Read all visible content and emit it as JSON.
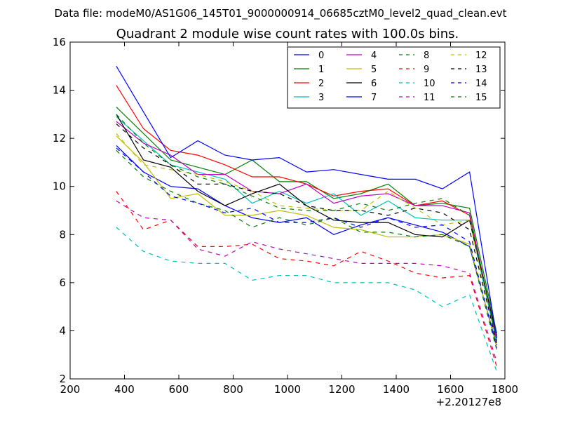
{
  "header": {
    "datafile": "Data file: modeM0/AS1G06_145T01_9000000914_06685cztM0_level2_quad_clean.evt"
  },
  "chart_data": {
    "type": "line",
    "title": "Quadrant 2 module wise count rates with 100.0s bins.",
    "xlabel": "",
    "ylabel": "",
    "x_offset_label": "+2.20127e8",
    "xlim": [
      200,
      1800
    ],
    "ylim": [
      2,
      16
    ],
    "xticks": [
      200,
      400,
      600,
      800,
      1000,
      1200,
      1400,
      1600,
      1800
    ],
    "yticks": [
      2,
      4,
      6,
      8,
      10,
      12,
      14,
      16
    ],
    "legend_position": "top-right",
    "x": [
      370,
      470,
      570,
      670,
      770,
      870,
      970,
      1070,
      1170,
      1270,
      1370,
      1470,
      1570,
      1670,
      1770
    ],
    "series": [
      {
        "name": "0",
        "color": "#0000ff",
        "dash": "solid",
        "values": [
          11.7,
          10.6,
          10.0,
          9.9,
          9.2,
          8.7,
          8.5,
          8.7,
          8.0,
          8.4,
          8.7,
          8.4,
          8.1,
          7.5,
          3.4
        ]
      },
      {
        "name": "1",
        "color": "#008000",
        "dash": "solid",
        "values": [
          13.3,
          12.2,
          11.1,
          10.8,
          10.5,
          11.1,
          10.2,
          10.2,
          9.5,
          9.7,
          10.1,
          9.2,
          9.3,
          9.1,
          3.9
        ]
      },
      {
        "name": "2",
        "color": "#ff0000",
        "dash": "solid",
        "values": [
          14.2,
          12.4,
          11.5,
          11.3,
          10.9,
          10.4,
          10.4,
          10.1,
          9.6,
          9.8,
          9.9,
          9.2,
          9.4,
          8.8,
          3.7
        ]
      },
      {
        "name": "3",
        "color": "#00bfbf",
        "dash": "solid",
        "values": [
          12.9,
          11.9,
          10.9,
          10.6,
          10.3,
          9.3,
          9.8,
          9.3,
          9.7,
          8.8,
          9.4,
          8.7,
          8.6,
          8.6,
          3.5
        ]
      },
      {
        "name": "4",
        "color": "#bf00bf",
        "dash": "solid",
        "values": [
          12.7,
          11.8,
          11.3,
          10.5,
          10.5,
          9.8,
          9.7,
          10.1,
          9.3,
          9.6,
          9.7,
          9.2,
          9.2,
          8.9,
          3.6
        ]
      },
      {
        "name": "5",
        "color": "#bfbf00",
        "dash": "solid",
        "values": [
          12.1,
          11.0,
          9.5,
          9.7,
          8.8,
          8.8,
          9.0,
          8.8,
          8.3,
          8.2,
          7.9,
          7.9,
          8.0,
          7.6,
          3.3
        ]
      },
      {
        "name": "6",
        "color": "#000000",
        "dash": "solid",
        "values": [
          13.0,
          11.1,
          10.8,
          9.8,
          9.2,
          9.7,
          10.1,
          9.2,
          8.6,
          8.5,
          8.5,
          8.0,
          7.9,
          8.6,
          3.8
        ]
      },
      {
        "name": "7",
        "color": "#0000ff",
        "dash": "solid",
        "values": [
          15.0,
          13.1,
          11.2,
          11.9,
          11.3,
          11.1,
          11.2,
          10.6,
          10.7,
          10.5,
          10.3,
          10.3,
          9.9,
          10.6,
          3.7
        ]
      },
      {
        "name": "8",
        "color": "#008000",
        "dash": "dashed",
        "values": [
          11.5,
          10.4,
          9.8,
          9.3,
          9.0,
          8.3,
          8.7,
          8.4,
          8.7,
          8.1,
          8.1,
          7.9,
          8.0,
          7.5,
          3.2
        ]
      },
      {
        "name": "9",
        "color": "#ff0000",
        "dash": "dashed",
        "values": [
          9.8,
          8.2,
          8.6,
          7.5,
          7.5,
          7.6,
          7.0,
          6.9,
          6.7,
          7.3,
          6.9,
          6.4,
          6.2,
          6.3,
          2.5
        ]
      },
      {
        "name": "10",
        "color": "#00bfbf",
        "dash": "dashed",
        "values": [
          8.3,
          7.3,
          6.9,
          6.8,
          6.8,
          6.1,
          6.3,
          6.3,
          6.0,
          6.0,
          6.0,
          5.7,
          5.0,
          5.5,
          2.3
        ]
      },
      {
        "name": "11",
        "color": "#bf00bf",
        "dash": "dashed",
        "values": [
          9.4,
          8.7,
          8.6,
          7.4,
          7.1,
          7.7,
          7.4,
          7.2,
          7.0,
          6.8,
          6.8,
          6.8,
          6.7,
          6.4,
          2.7
        ]
      },
      {
        "name": "12",
        "color": "#bfbf00",
        "dash": "dashed",
        "values": [
          12.2,
          10.9,
          10.7,
          10.5,
          10.2,
          9.8,
          9.2,
          9.1,
          9.0,
          9.0,
          9.8,
          9.1,
          8.4,
          8.6,
          3.4
        ]
      },
      {
        "name": "13",
        "color": "#000000",
        "dash": "dashed",
        "values": [
          12.6,
          11.6,
          10.9,
          10.1,
          10.1,
          9.8,
          9.7,
          9.2,
          9.0,
          9.0,
          8.8,
          9.1,
          8.9,
          8.2,
          3.5
        ]
      },
      {
        "name": "14",
        "color": "#0000ff",
        "dash": "dashed",
        "values": [
          11.6,
          10.6,
          9.6,
          9.3,
          8.9,
          9.1,
          8.5,
          8.5,
          8.7,
          8.3,
          8.7,
          8.3,
          8.4,
          7.7,
          3.3
        ]
      },
      {
        "name": "15",
        "color": "#008000",
        "dash": "dashed",
        "values": [
          13.0,
          11.8,
          10.9,
          10.4,
          10.1,
          9.6,
          9.1,
          9.0,
          9.0,
          9.3,
          9.0,
          9.3,
          9.5,
          8.8,
          3.6
        ]
      }
    ]
  }
}
